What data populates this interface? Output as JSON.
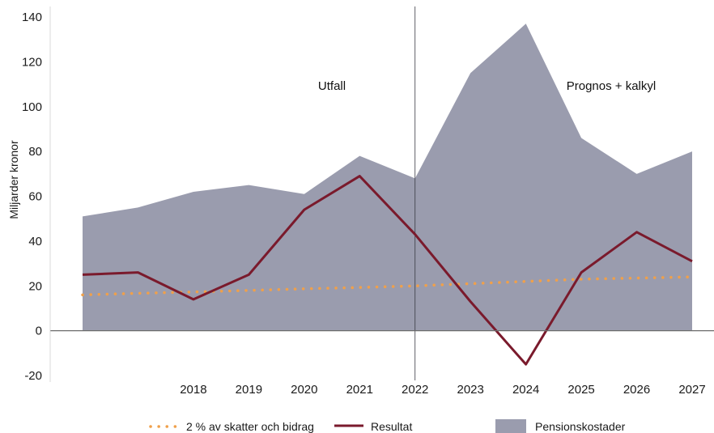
{
  "chart_data": {
    "type": "area",
    "title": "",
    "xlabel": "",
    "ylabel": "Miljarder kronor",
    "ylim": [
      -20,
      140
    ],
    "yticks": [
      -20,
      0,
      20,
      40,
      60,
      80,
      100,
      120,
      140
    ],
    "x": [
      2016,
      2017,
      2018,
      2019,
      2020,
      2021,
      2022,
      2023,
      2024,
      2025,
      2026,
      2027
    ],
    "xtick_labels": [
      "2018",
      "2019",
      "2020",
      "2021",
      "2022",
      "2023",
      "2024",
      "2025",
      "2026",
      "2027"
    ],
    "xtick_values": [
      2018,
      2019,
      2020,
      2021,
      2022,
      2023,
      2024,
      2025,
      2026,
      2027
    ],
    "series": [
      {
        "name": "Pensionskostader",
        "type": "area",
        "color": "#9a9cae",
        "values": [
          51,
          55,
          62,
          65,
          61,
          78,
          68,
          115,
          137,
          86,
          70,
          80
        ]
      },
      {
        "name": "Resultat",
        "type": "line",
        "color": "#7a1a2c",
        "values": [
          25,
          26,
          14,
          25,
          54,
          69,
          43,
          13,
          -15,
          26,
          44,
          31
        ]
      },
      {
        "name": "2 % av skatter och bidrag",
        "type": "line",
        "style": "dotted",
        "color": "#f0a04a",
        "values": [
          16,
          16.7,
          17.3,
          18,
          18.7,
          19.3,
          20,
          21,
          22,
          23,
          23.5,
          24
        ]
      }
    ],
    "vertical_marker": {
      "x": 2022
    },
    "annotations": [
      {
        "text": "Utfall",
        "x": 2021,
        "y": 108
      },
      {
        "text": "Prognos + kalkyl",
        "x": 2025.7,
        "y": 108
      }
    ],
    "legend": {
      "position": "bottom",
      "items": [
        {
          "label": "2 % av skatter och bidrag",
          "style": "dotted",
          "color": "#f0a04a"
        },
        {
          "label": "Resultat",
          "style": "line",
          "color": "#7a1a2c"
        },
        {
          "label": "Pensionskostader",
          "style": "patch",
          "color": "#9a9cae"
        }
      ]
    },
    "grid": false
  }
}
